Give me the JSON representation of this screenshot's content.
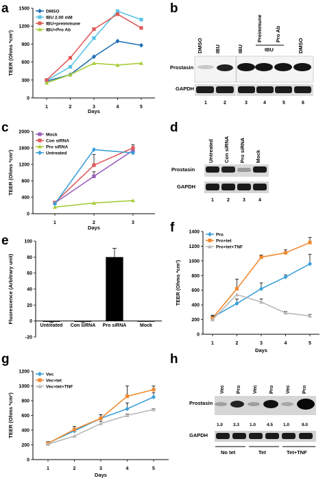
{
  "panel_letters": [
    "a",
    "b",
    "c",
    "d",
    "e",
    "f",
    "g",
    "h"
  ],
  "chart_data": [
    {
      "panel": "a",
      "type": "line",
      "xlabel": "Days",
      "ylabel": "TEER (Ohms *cm²)",
      "x": [
        1,
        2,
        3,
        4,
        5
      ],
      "ylim": [
        0,
        1500
      ],
      "yticks": [
        0,
        300,
        600,
        900,
        1200,
        1500
      ],
      "legend_position": "top-left",
      "series": [
        {
          "name": "DMSO",
          "color": "#1f6fb4",
          "marker": "diamond",
          "values": [
            280,
            390,
            690,
            950,
            880
          ]
        },
        {
          "name": "IBU 2.00 mM",
          "color": "#5bc3e8",
          "marker": "square",
          "values": [
            290,
            520,
            1000,
            1450,
            1310
          ]
        },
        {
          "name": "IBU+preimmune",
          "color": "#e05a5a",
          "marker": "square",
          "values": [
            300,
            670,
            1150,
            1400,
            1170
          ]
        },
        {
          "name": "IBU+Pro Ab",
          "color": "#a8cc3a",
          "marker": "triangle",
          "values": [
            250,
            390,
            580,
            550,
            580
          ]
        }
      ]
    },
    {
      "panel": "c",
      "type": "line",
      "xlabel": "Days",
      "ylabel": "TEER (Ohms *cm²)",
      "x": [
        1,
        2,
        3
      ],
      "ylim": [
        0,
        2000
      ],
      "yticks": [
        0,
        400,
        800,
        1200,
        1600,
        2000
      ],
      "legend_position": "top-left",
      "series": [
        {
          "name": "Mock",
          "color": "#9a5fb8",
          "marker": "square",
          "values": [
            260,
            910,
            1540
          ],
          "errors": [
            0,
            110,
            0
          ]
        },
        {
          "name": "Con siRNA",
          "color": "#e05a5a",
          "marker": "square",
          "values": [
            270,
            1180,
            1600
          ],
          "errors": [
            0,
            260,
            80
          ]
        },
        {
          "name": "Pro siRNA",
          "color": "#a8cc3a",
          "marker": "triangle",
          "values": [
            160,
            260,
            320
          ],
          "errors": [
            0,
            0,
            0
          ]
        },
        {
          "name": "Untreated",
          "color": "#3ba0d8",
          "marker": "diamond",
          "values": [
            240,
            1560,
            1480
          ],
          "errors": [
            0,
            0,
            0
          ]
        }
      ]
    },
    {
      "panel": "e",
      "type": "bar",
      "ylabel": "Fluorescence (Arbitrary unit)",
      "categories": [
        "Untreated",
        "Con siRNA",
        "Pro siRNA",
        "Mock"
      ],
      "values": [
        -1,
        -1,
        80,
        0
      ],
      "errors": [
        1,
        1.5,
        11,
        0
      ],
      "ylim": [
        -20,
        100
      ],
      "yticks": [
        -20,
        0,
        20,
        40,
        60,
        80,
        100
      ]
    },
    {
      "panel": "f",
      "type": "line",
      "xlabel": "Days",
      "ylabel": "TEER (Ohms *cm²)",
      "x": [
        1,
        2,
        3,
        4,
        5
      ],
      "ylim": [
        0,
        1400
      ],
      "yticks": [
        0,
        200,
        400,
        600,
        800,
        1000,
        1200,
        1400
      ],
      "legend_position": "top-left",
      "series": [
        {
          "name": "Pro",
          "color": "#3ba0d8",
          "marker": "diamond",
          "values": [
            230,
            420,
            620,
            780,
            960
          ],
          "errors": [
            30,
            60,
            80,
            30,
            130
          ]
        },
        {
          "name": "Pro+tet",
          "color": "#f08a30",
          "marker": "square",
          "values": [
            220,
            620,
            1050,
            1110,
            1250
          ],
          "errors": [
            30,
            130,
            30,
            40,
            70
          ]
        },
        {
          "name": "Pro+tet+TNF",
          "color": "#b8b8b8",
          "marker": "triangle",
          "values": [
            200,
            540,
            440,
            290,
            250
          ],
          "errors": [
            0,
            0,
            40,
            20,
            20
          ]
        }
      ]
    },
    {
      "panel": "g",
      "type": "line",
      "xlabel": "Days",
      "ylabel": "TEER (Ohms *cm²)",
      "x": [
        1,
        2,
        3,
        4,
        5
      ],
      "ylim": [
        0,
        1200
      ],
      "yticks": [
        0,
        200,
        400,
        600,
        800,
        1000,
        1200
      ],
      "legend_position": "top-left",
      "series": [
        {
          "name": "Vec",
          "color": "#3ba0d8",
          "marker": "diamond",
          "values": [
            225,
            390,
            560,
            690,
            850
          ],
          "errors": [
            20,
            30,
            50,
            80,
            60
          ]
        },
        {
          "name": "Vec+tet",
          "color": "#f08a30",
          "marker": "square",
          "values": [
            220,
            410,
            560,
            860,
            950
          ],
          "errors": [
            20,
            40,
            50,
            140,
            50
          ]
        },
        {
          "name": "Vec+tet+TNF",
          "color": "#b8b8b8",
          "marker": "triangle",
          "values": [
            210,
            320,
            490,
            600,
            680
          ],
          "errors": [
            0,
            0,
            30,
            20,
            10
          ]
        }
      ]
    }
  ],
  "blot_b": {
    "lane_labels": [
      "DMSO",
      "IBU",
      "IBU",
      "Preimmune",
      "Pro Ab",
      "DMSO"
    ],
    "group_label": "IBU",
    "rows": [
      "Prostasin",
      "GAPDH"
    ],
    "lane_numbers": [
      "1",
      "2",
      "3",
      "4",
      "5",
      "6"
    ]
  },
  "blot_d": {
    "lane_labels": [
      "Untreated",
      "Con siRNA",
      "Pro siRNA",
      "Mock"
    ],
    "rows": [
      "Prostasin",
      "GAPDH"
    ],
    "lane_numbers": [
      "1",
      "2",
      "3",
      "4"
    ]
  },
  "blot_h": {
    "lane_labels": [
      "Vec",
      "Pro",
      "Vec",
      "Pro",
      "Vec",
      "Pro"
    ],
    "rows": [
      "Prostasin",
      "GAPDH"
    ],
    "quant": [
      "1.0",
      "3.3",
      "1.0",
      "4.5",
      "1.0",
      "9.0"
    ],
    "groups": [
      "No tet",
      "Tet",
      "Tet+TNF"
    ]
  }
}
